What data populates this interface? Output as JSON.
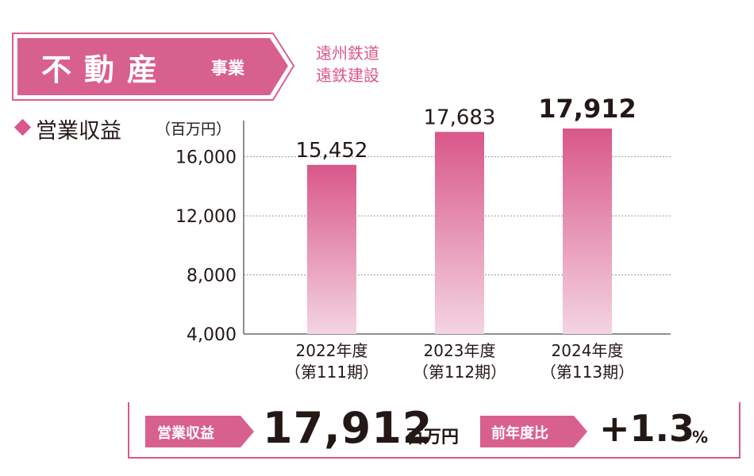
{
  "header": {
    "title_main": "不動産",
    "title_sub": "事業",
    "companies": [
      "遠州鉄道",
      "遠鉄建設"
    ]
  },
  "metric": {
    "name": "営業収益",
    "unit": "（百万円）"
  },
  "chart_data": {
    "type": "bar",
    "categories": [
      {
        "year": "2022年度",
        "term": "（第111期）"
      },
      {
        "year": "2023年度",
        "term": "（第112期）"
      },
      {
        "year": "2024年度",
        "term": "（第113期）"
      }
    ],
    "values": [
      15452,
      17683,
      17912
    ],
    "value_labels": [
      "15,452",
      "17,683",
      "17,912"
    ],
    "highlight_index": 2,
    "ylim": [
      4000,
      17912
    ],
    "yticks": [
      4000,
      8000,
      12000,
      16000
    ],
    "ytick_labels": [
      "4,000",
      "8,000",
      "12,000",
      "16,000"
    ],
    "grid": true,
    "colors": {
      "bar_top": "#d9578a",
      "bar_bottom": "#f4d4e2",
      "grid": "#9a9a9a",
      "axis": "#6b6b6b"
    }
  },
  "summary": {
    "revenue_tag": "営業収益",
    "revenue_value": "17,912",
    "revenue_unit": "百万円",
    "yoy_tag": "前年度比",
    "yoy_value": "+1.3",
    "yoy_unit": "%"
  },
  "colors": {
    "accent": "#d9578a",
    "banner": "#d8608f",
    "text": "#231815"
  }
}
